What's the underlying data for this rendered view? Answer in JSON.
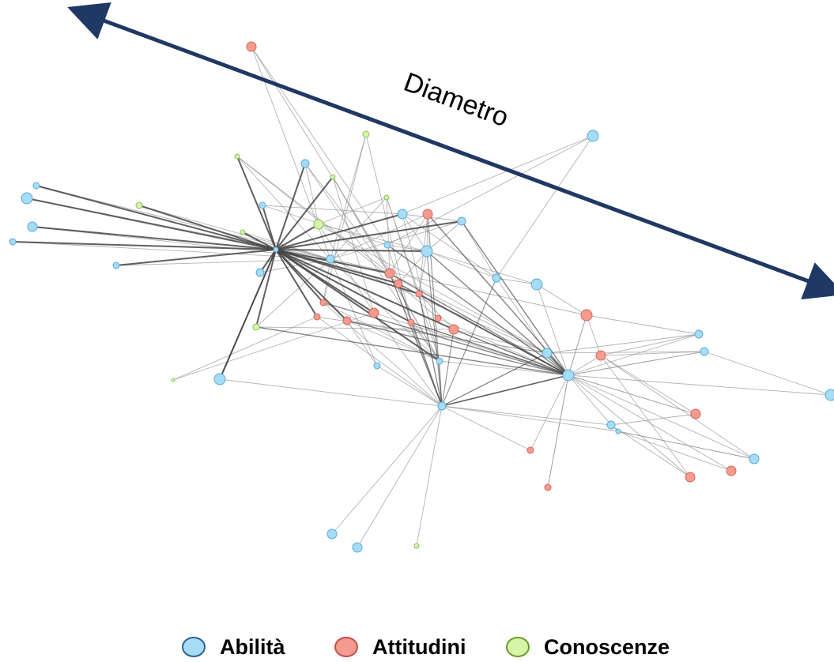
{
  "annotation": {
    "label": "Diametro"
  },
  "legend": [
    {
      "label": "Abilità",
      "fill": "#a6dcf5",
      "stroke": "#2e5f95"
    },
    {
      "label": "Attitudini",
      "fill": "#f39b8e",
      "stroke": "#c0504d"
    },
    {
      "label": "Conoscenze",
      "fill": "#d6f5a8",
      "stroke": "#6a9a2a"
    }
  ],
  "colors": {
    "arrow": "#1f3864",
    "edge": "#9a9a9a",
    "edge_strong": "#444444",
    "abilita": "#a6dcf5",
    "abilita_stroke": "#5aaad8",
    "attitudini": "#f39b8e",
    "attitudini_stroke": "#d9655a",
    "conoscenze": "#d6f5a8",
    "conoscenze_stroke": "#8cc05a"
  }
}
